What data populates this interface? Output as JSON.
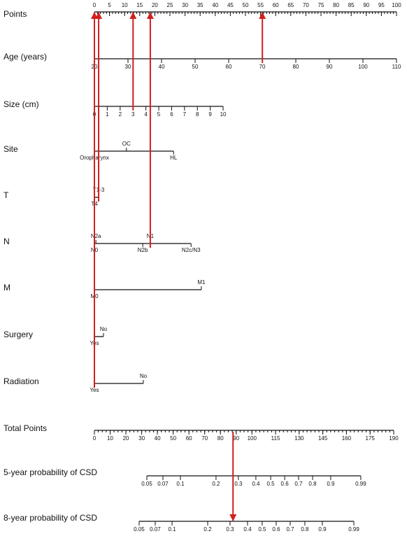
{
  "chart_data": {
    "type": "nomogram",
    "points_axis": {
      "label": "Points",
      "xlim": [
        0,
        100
      ],
      "xticks": [
        0,
        5,
        10,
        15,
        20,
        25,
        30,
        35,
        40,
        45,
        50,
        55,
        60,
        65,
        70,
        75,
        80,
        85,
        90,
        95,
        100
      ],
      "minor_step": 1
    },
    "rows": [
      {
        "label": "Age (years)",
        "kind": "continuous",
        "xlim": [
          20,
          110
        ],
        "points_range": [
          0,
          100
        ],
        "xticks": [
          20,
          30,
          40,
          50,
          60,
          70,
          80,
          90,
          100,
          110
        ]
      },
      {
        "label": "Size (cm)",
        "kind": "continuous",
        "xlim": [
          0,
          10
        ],
        "points_range": [
          0,
          42.6
        ],
        "xticks": [
          0,
          1,
          2,
          3,
          4,
          5,
          6,
          7,
          8,
          9,
          10
        ]
      },
      {
        "label": "Site",
        "kind": "categorical",
        "levels": [
          {
            "label": "Oropharynx",
            "points": 0,
            "side": "below"
          },
          {
            "label": "OC",
            "points": 10.6,
            "side": "above"
          },
          {
            "label": "HL",
            "points": 26.2,
            "side": "below"
          }
        ]
      },
      {
        "label": "T",
        "kind": "categorical",
        "levels": [
          {
            "label": "T4",
            "points": 0,
            "side": "below"
          },
          {
            "label": "T1-3",
            "points": 1.4,
            "side": "above"
          }
        ]
      },
      {
        "label": "N",
        "kind": "categorical",
        "levels": [
          {
            "label": "N0",
            "points": 0,
            "side": "below"
          },
          {
            "label": "N2a",
            "points": 0.5,
            "side": "above"
          },
          {
            "label": "N2b",
            "points": 16,
            "side": "below"
          },
          {
            "label": "N1",
            "points": 18.5,
            "side": "above"
          },
          {
            "label": "N2c/N3",
            "points": 32,
            "side": "below"
          }
        ]
      },
      {
        "label": "M",
        "kind": "categorical",
        "levels": [
          {
            "label": "M0",
            "points": 0,
            "side": "below"
          },
          {
            "label": "M1",
            "points": 35.4,
            "side": "above"
          }
        ]
      },
      {
        "label": "Surgery",
        "kind": "categorical",
        "levels": [
          {
            "label": "Yes",
            "points": 0,
            "side": "below"
          },
          {
            "label": "No",
            "points": 3,
            "side": "above"
          }
        ]
      },
      {
        "label": "Radiation",
        "kind": "categorical",
        "levels": [
          {
            "label": "Yes",
            "points": 0,
            "side": "below"
          },
          {
            "label": "No",
            "points": 16.2,
            "side": "above"
          }
        ]
      }
    ],
    "total_points": {
      "label": "Total Points",
      "xlim": [
        0,
        190
      ],
      "minor_step": 2.5,
      "xticks": [
        0,
        10,
        20,
        30,
        40,
        50,
        60,
        70,
        80,
        90,
        100,
        115,
        130,
        145,
        160,
        175,
        190
      ]
    },
    "probability_rows": [
      {
        "label": "5-year probability of CSD",
        "ticks": [
          {
            "value": 0.05,
            "total": 33.3
          },
          {
            "value": 0.07,
            "total": 43.5
          },
          {
            "value": 0.1,
            "total": 54.6
          },
          {
            "value": 0.2,
            "total": 77.2
          },
          {
            "value": 0.3,
            "total": 91.4
          },
          {
            "value": 0.4,
            "total": 102.5
          },
          {
            "value": 0.5,
            "total": 111.9
          },
          {
            "value": 0.6,
            "total": 120.8
          },
          {
            "value": 0.7,
            "total": 129.6
          },
          {
            "value": 0.8,
            "total": 138.5
          },
          {
            "value": 0.9,
            "total": 150
          },
          {
            "value": 0.99,
            "total": 169.1
          }
        ]
      },
      {
        "label": "8-year probability of CSD",
        "ticks": [
          {
            "value": 0.05,
            "total": 28.4
          },
          {
            "value": 0.07,
            "total": 38.6
          },
          {
            "value": 0.1,
            "total": 49.3
          },
          {
            "value": 0.2,
            "total": 71.9
          },
          {
            "value": 0.3,
            "total": 86.1
          },
          {
            "value": 0.4,
            "total": 97.2
          },
          {
            "value": 0.5,
            "total": 106.5
          },
          {
            "value": 0.6,
            "total": 115.4
          },
          {
            "value": 0.7,
            "total": 124.3
          },
          {
            "value": 0.8,
            "total": 133.6
          },
          {
            "value": 0.9,
            "total": 144.7
          },
          {
            "value": 0.99,
            "total": 164.7
          }
        ]
      }
    ],
    "arrow_color": "#d11f1f",
    "arrows": [
      {
        "points": 0,
        "from_row": 7
      },
      {
        "points": 1.4,
        "from_row": 3
      },
      {
        "points": 12.8,
        "from_row": 1
      },
      {
        "points": 18.5,
        "from_row": 4
      },
      {
        "points": 55.6,
        "from_row": 0
      }
    ],
    "total_arrow": {
      "total": 88,
      "to_row": 1
    }
  }
}
